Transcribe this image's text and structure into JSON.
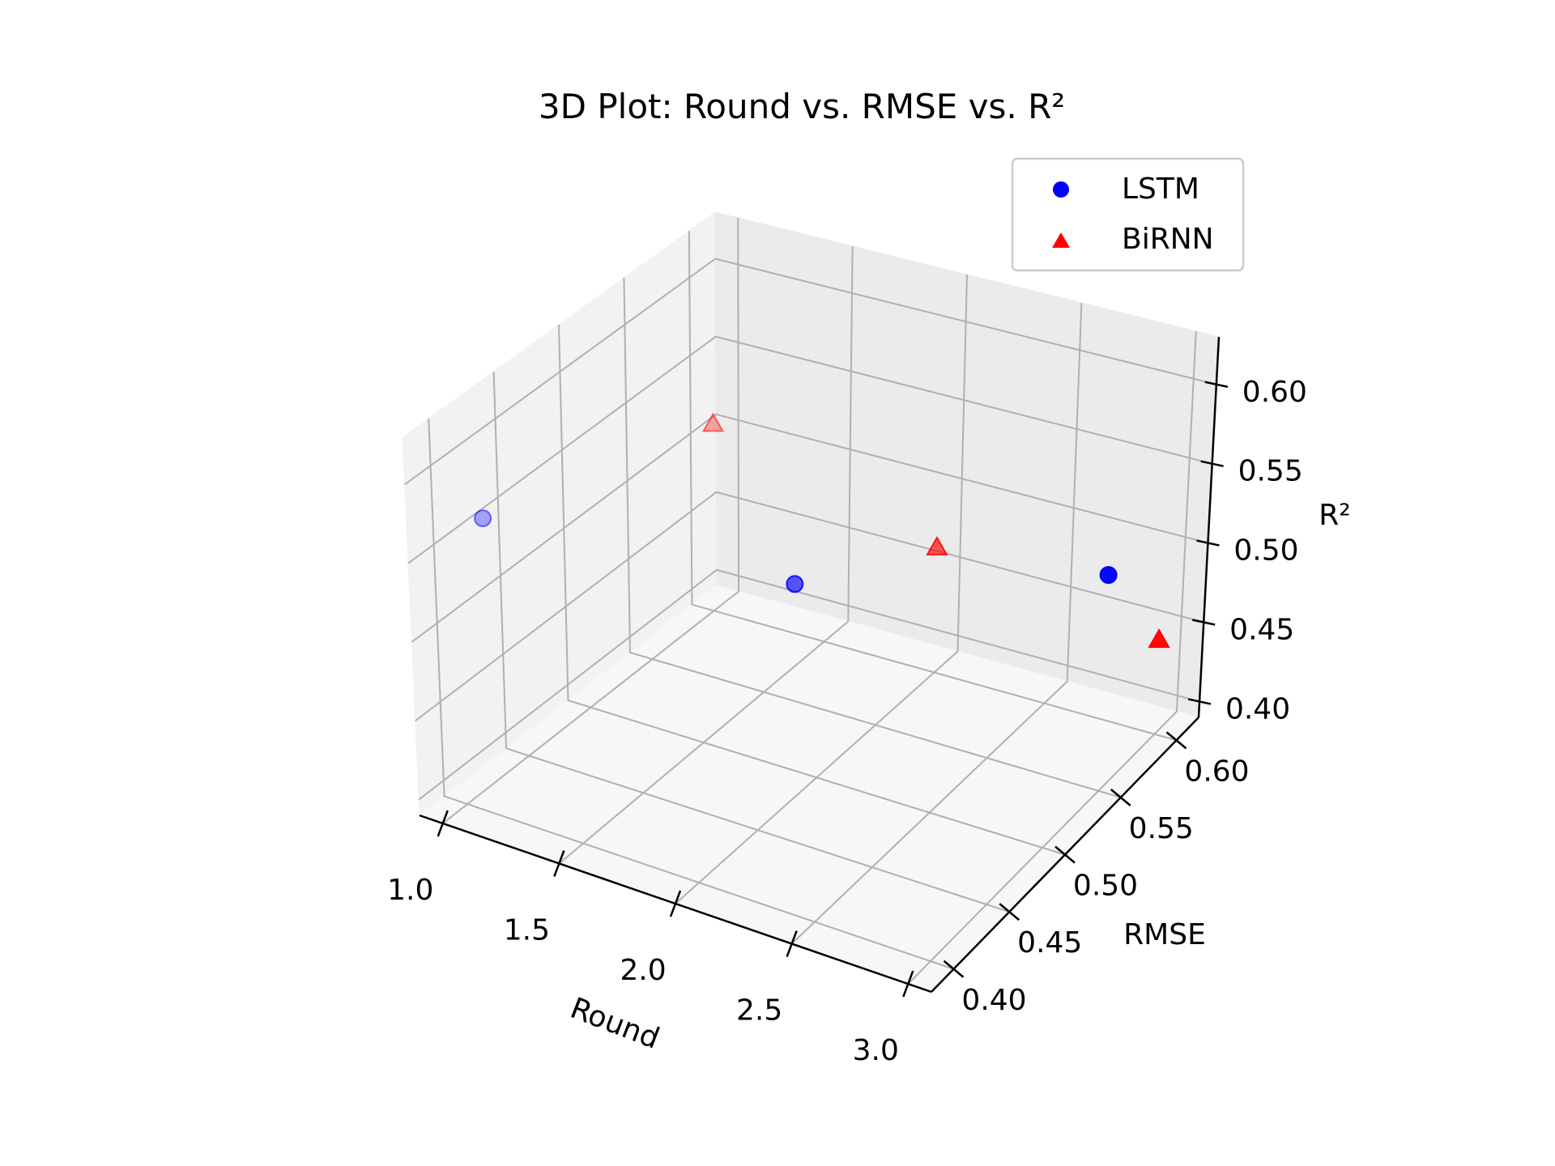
{
  "chart_data": {
    "type": "scatter",
    "title": "3D Plot: Round vs. RMSE vs. R²",
    "xlabel": "Round",
    "ylabel": "RMSE",
    "zlabel": "R²",
    "x_ticks": [
      "1.0",
      "1.5",
      "2.0",
      "2.5",
      "3.0"
    ],
    "y_ticks": [
      "0.40",
      "0.45",
      "0.50",
      "0.55",
      "0.60"
    ],
    "z_ticks": [
      "0.40",
      "0.45",
      "0.50",
      "0.55",
      "0.60"
    ],
    "xlim": [
      0.9,
      3.1
    ],
    "ylim": [
      0.38,
      0.62
    ],
    "zlim": [
      0.39,
      0.63
    ],
    "grid": true,
    "legend_position": "top-right",
    "series": [
      {
        "name": "LSTM",
        "marker": "circle",
        "color": "#0000ff",
        "points": [
          {
            "x": 1,
            "y": 0.42,
            "z": 0.56
          },
          {
            "x": 2,
            "y": 0.48,
            "z": 0.53
          },
          {
            "x": 3,
            "y": 0.55,
            "z": 0.53
          }
        ]
      },
      {
        "name": "BiRNN",
        "marker": "triangle",
        "color": "#ff0000",
        "points": [
          {
            "x": 1,
            "y": 0.6,
            "z": 0.51
          },
          {
            "x": 2,
            "y": 0.6,
            "z": 0.47
          },
          {
            "x": 3,
            "y": 0.6,
            "z": 0.45
          }
        ]
      }
    ]
  }
}
